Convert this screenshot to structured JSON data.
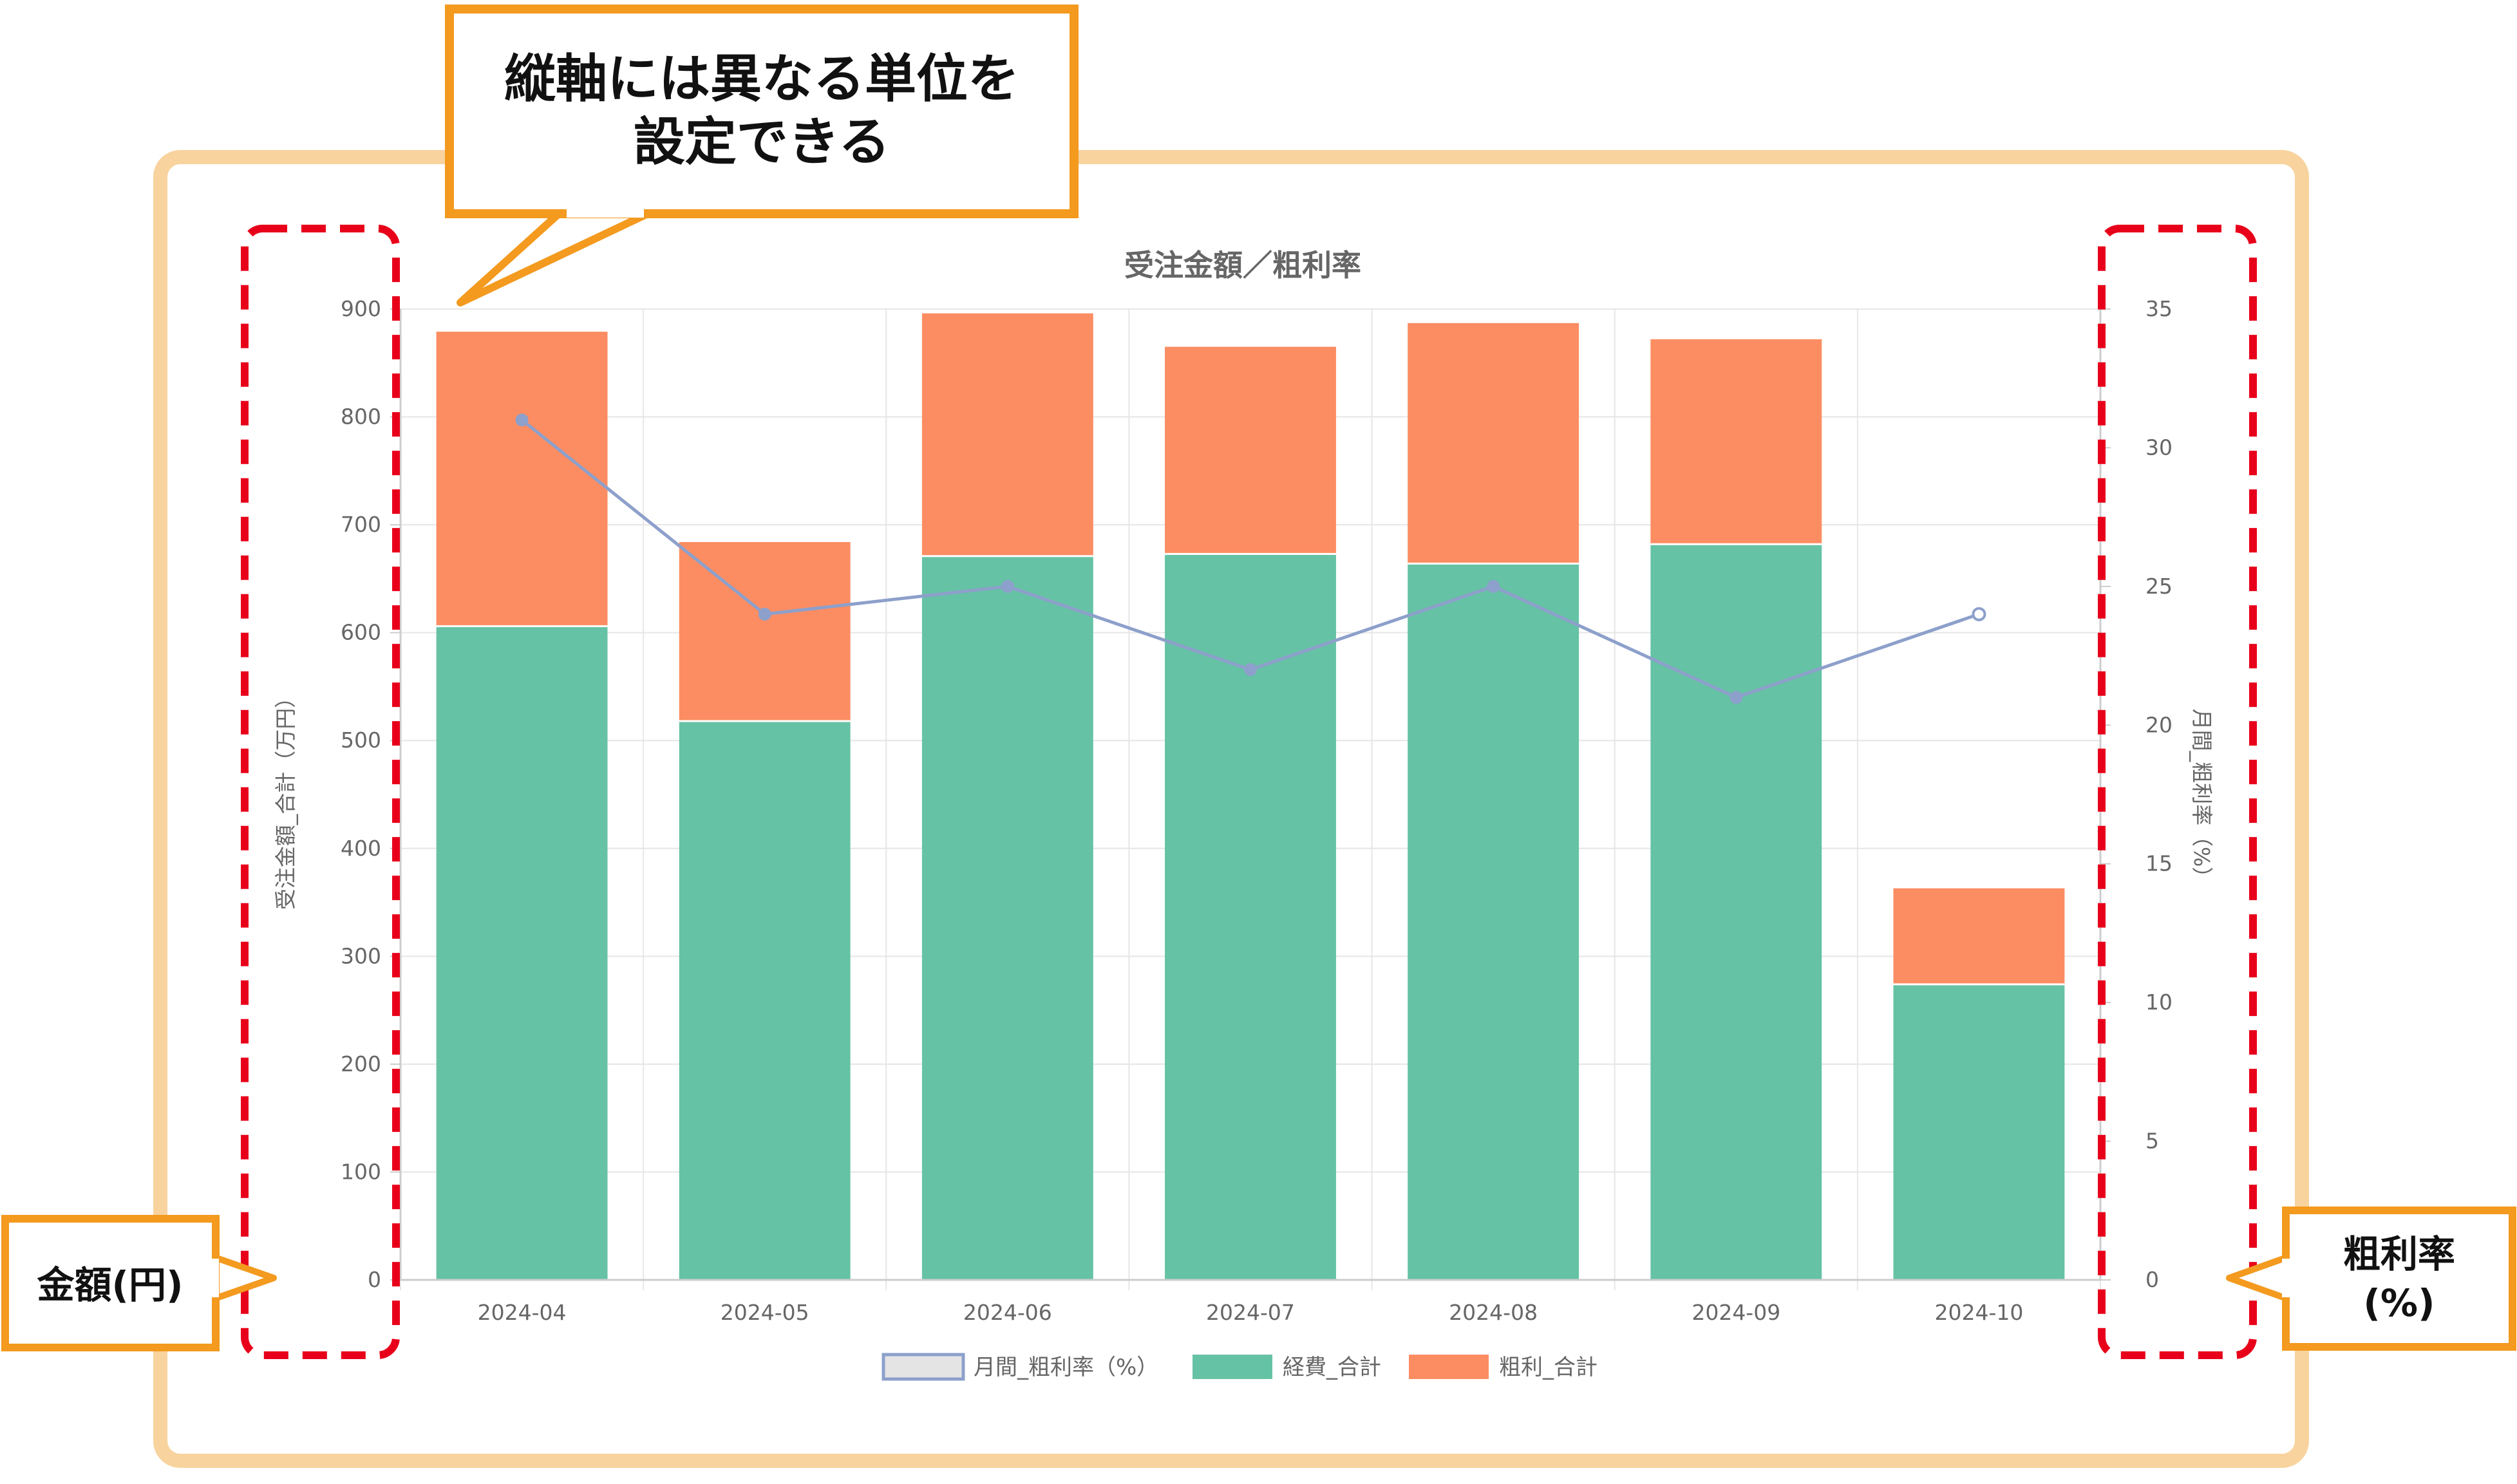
{
  "callouts": {
    "top_line1": "縦軸には異なる単位を",
    "top_line2": "設定できる",
    "left_label": "金額(円)",
    "right_line1": "粗利率",
    "right_line2": "(%)"
  },
  "colors": {
    "frame": "#f8d39e",
    "callout_border": "#f39a1f",
    "dash": "#e8001a",
    "cost": "#66c2a5",
    "profit": "#fc8d62",
    "line": "#8da0cb",
    "grid": "#e6e6e6",
    "axis_text": "#666666"
  },
  "chart_data": {
    "type": "bar",
    "title": "受注金額／粗利率",
    "categories": [
      "2024-04",
      "2024-05",
      "2024-06",
      "2024-07",
      "2024-08",
      "2024-09",
      "2024-10"
    ],
    "stacked": true,
    "y_left": {
      "label": "受注金額_合計（万円）",
      "min": 0,
      "max": 900,
      "ticks": [
        0,
        100,
        200,
        300,
        400,
        500,
        600,
        700,
        800,
        900
      ]
    },
    "y_right": {
      "label": "月間_粗利率（%）",
      "min": 0,
      "max": 35,
      "ticks": [
        0,
        5,
        10,
        15,
        20,
        25,
        30,
        35
      ]
    },
    "series": [
      {
        "name": "月間_粗利率（%）",
        "type": "line",
        "axis": "right",
        "values": [
          31,
          24,
          25,
          22,
          25,
          21,
          24
        ]
      },
      {
        "name": "経費_合計",
        "type": "bar",
        "axis": "left",
        "values": [
          606,
          518,
          671,
          673,
          664,
          682,
          274
        ]
      },
      {
        "name": "粗利_合計",
        "type": "bar",
        "axis": "left",
        "values": [
          273,
          166,
          225,
          192,
          223,
          190,
          89
        ]
      }
    ],
    "grid": true,
    "legend": "bottom"
  }
}
